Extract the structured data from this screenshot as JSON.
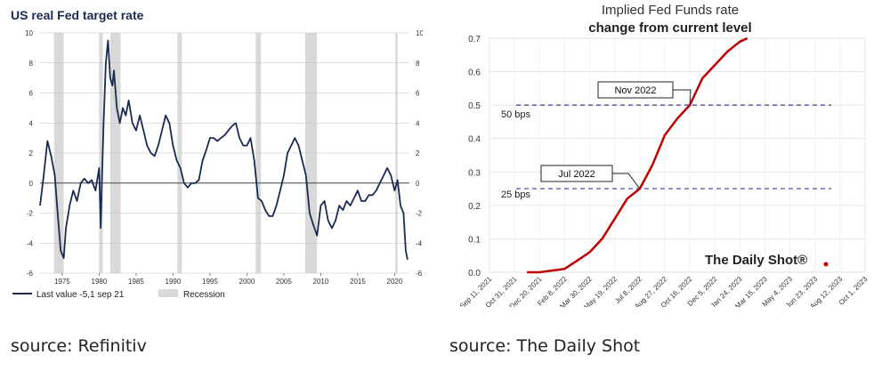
{
  "chart_data": [
    {
      "type": "line",
      "title": "US real Fed target rate",
      "xlim": [
        1972,
        2022
      ],
      "ylim": [
        -6,
        10
      ],
      "yticks": [
        -6,
        -4,
        -2,
        0,
        2,
        4,
        6,
        8,
        10
      ],
      "ytick_labels": [
        "-6",
        "-4",
        "-2",
        "0",
        "2",
        "4",
        "6",
        "8",
        "10"
      ],
      "xticks": [
        1975,
        1980,
        1985,
        1990,
        1995,
        2000,
        2005,
        2010,
        2015,
        2020
      ],
      "xtick_labels": [
        "1975",
        "1980",
        "1985",
        "1990",
        "1995",
        "2000",
        "2005",
        "2010",
        "2015",
        "2020"
      ],
      "grid": true,
      "line_color": "#1a2a52",
      "recession_color": "#d9d9d9",
      "legend": {
        "position": "bottom-left",
        "line_label": "Last value -5,1 sep 21",
        "band_label": "Recession"
      },
      "recessions": [
        [
          1973.9,
          1975.2
        ],
        [
          1980.0,
          1980.5
        ],
        [
          1981.5,
          1982.9
        ],
        [
          1990.6,
          1991.2
        ],
        [
          2001.2,
          2001.9
        ],
        [
          2007.9,
          2009.5
        ],
        [
          2020.1,
          2020.4
        ]
      ],
      "series": [
        {
          "x": [
            1972.0,
            1972.5,
            1973.0,
            1973.5,
            1974.0,
            1974.3,
            1974.8,
            1975.2,
            1975.5,
            1976.0,
            1976.5,
            1977.0,
            1977.5,
            1978.0,
            1978.5,
            1979.0,
            1979.5,
            1980.0,
            1980.2,
            1980.4,
            1980.6,
            1980.9,
            1981.2,
            1981.5,
            1981.8,
            1982.0,
            1982.4,
            1982.8,
            1983.2,
            1983.6,
            1984.0,
            1984.5,
            1985.0,
            1985.5,
            1986.0,
            1986.5,
            1987.0,
            1987.5,
            1988.0,
            1988.5,
            1989.0,
            1989.5,
            1990.0,
            1990.5,
            1991.0,
            1991.5,
            1992.0,
            1992.5,
            1993.0,
            1993.5,
            1994.0,
            1994.5,
            1995.0,
            1995.5,
            1996.0,
            1996.5,
            1997.0,
            1997.5,
            1998.0,
            1998.5,
            1999.0,
            1999.5,
            2000.0,
            2000.5,
            2001.0,
            2001.5,
            2002.0,
            2002.5,
            2003.0,
            2003.5,
            2004.0,
            2004.5,
            2005.0,
            2005.5,
            2006.0,
            2006.5,
            2007.0,
            2007.5,
            2008.0,
            2008.5,
            2009.0,
            2009.5,
            2010.0,
            2010.5,
            2011.0,
            2011.5,
            2012.0,
            2012.5,
            2013.0,
            2013.5,
            2014.0,
            2014.5,
            2015.0,
            2015.5,
            2016.0,
            2016.5,
            2017.0,
            2017.5,
            2018.0,
            2018.5,
            2019.0,
            2019.5,
            2020.0,
            2020.4,
            2020.8,
            2021.2,
            2021.5,
            2021.75
          ],
          "y": [
            -1.5,
            0.5,
            2.8,
            1.8,
            0.5,
            -1.5,
            -4.5,
            -5.0,
            -3.0,
            -1.5,
            -0.5,
            -1.2,
            0.0,
            0.3,
            0.0,
            0.2,
            -0.5,
            1.0,
            -3.0,
            0.5,
            4.0,
            8.0,
            9.5,
            7.0,
            6.5,
            7.5,
            5.0,
            4.0,
            5.0,
            4.5,
            5.5,
            4.0,
            3.5,
            4.5,
            3.5,
            2.5,
            2.0,
            1.8,
            2.5,
            3.5,
            4.5,
            4.0,
            2.5,
            1.5,
            1.0,
            0.0,
            -0.3,
            0.0,
            0.0,
            0.2,
            1.5,
            2.2,
            3.0,
            3.0,
            2.8,
            3.0,
            3.2,
            3.5,
            3.8,
            4.0,
            3.0,
            2.5,
            2.5,
            3.0,
            1.5,
            -1.0,
            -1.2,
            -1.8,
            -2.2,
            -2.2,
            -1.5,
            -0.5,
            0.5,
            2.0,
            2.5,
            3.0,
            2.5,
            1.5,
            0.5,
            -2.0,
            -2.8,
            -3.5,
            -1.5,
            -1.2,
            -2.5,
            -3.0,
            -2.5,
            -1.5,
            -1.8,
            -1.2,
            -1.5,
            -1.0,
            -0.5,
            -1.2,
            -1.2,
            -0.8,
            -0.8,
            -0.5,
            0.0,
            0.5,
            1.0,
            0.5,
            -0.5,
            0.2,
            -1.5,
            -2.0,
            -4.5,
            -5.1
          ]
        }
      ]
    },
    {
      "type": "line",
      "title": "Implied Fed Funds rate",
      "subtitle": "change from current level",
      "ylim": [
        0,
        0.7
      ],
      "yticks": [
        0,
        0.1,
        0.2,
        0.3,
        0.4,
        0.5,
        0.6,
        0.7
      ],
      "ytick_labels": [
        "0.0",
        "0.1",
        "0.2",
        "0.3",
        "0.4",
        "0.5",
        "0.6",
        "0.7"
      ],
      "categories": [
        "Sep 11, 2021",
        "Oct 31, 2021",
        "Dec 20, 2021",
        "Feb 8, 2022",
        "Mar 30, 2022",
        "May 19, 2022",
        "Jul 8, 2022",
        "Aug 27, 2022",
        "Oct 16, 2022",
        "Dec 5, 2022",
        "Jan 24, 2023",
        "Mar 15, 2023",
        "May 4, 2023",
        "Jun 23, 2023",
        "Aug 12, 2023",
        "Oct 1, 2023"
      ],
      "grid": true,
      "line_color": "#c00000",
      "series": [
        {
          "x": [
            1.5,
            2.0,
            3.0,
            3.5,
            4.0,
            4.5,
            5.0,
            5.5,
            6.0,
            6.5,
            7.0,
            7.5,
            8.0,
            8.5,
            9.0,
            9.5,
            10.0,
            10.3
          ],
          "y": [
            0.0,
            0.0,
            0.01,
            0.035,
            0.06,
            0.1,
            0.16,
            0.22,
            0.25,
            0.32,
            0.41,
            0.46,
            0.5,
            0.58,
            0.62,
            0.66,
            0.69,
            0.7
          ]
        }
      ],
      "reference_lines": [
        {
          "y": 0.5,
          "label": "50 bps",
          "color": "#3a3aa8"
        },
        {
          "y": 0.25,
          "label": "25 bps",
          "color": "#3a3aa8"
        }
      ],
      "annotations": [
        {
          "label": "Nov 2022",
          "x": 8.0,
          "y": 0.5
        },
        {
          "label": "Jul 2022",
          "x": 6.0,
          "y": 0.25
        }
      ],
      "watermark": "The Daily Shot®"
    }
  ],
  "sources": {
    "left": "source: Refinitiv",
    "right": "source: The Daily Shot"
  }
}
